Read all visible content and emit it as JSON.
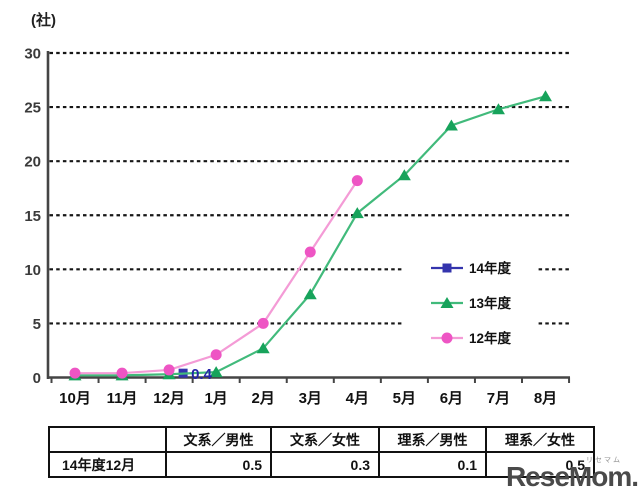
{
  "chart_data": {
    "type": "line",
    "unit_label": "(社)",
    "categories": [
      "10月",
      "11月",
      "12月",
      "1月",
      "2月",
      "3月",
      "4月",
      "5月",
      "6月",
      "7月",
      "8月"
    ],
    "series": [
      {
        "name": "14年度",
        "marker": "square",
        "line_color": "#3434ad",
        "marker_color": "#3434ad",
        "values": [
          null,
          null,
          0.4,
          null,
          null,
          null,
          null,
          null,
          null,
          null,
          null
        ]
      },
      {
        "name": "13年度",
        "marker": "triangle",
        "line_color": "#41ba7b",
        "marker_color": "#17a35b",
        "values": [
          0.2,
          0.2,
          0.3,
          0.5,
          2.7,
          7.7,
          15.2,
          18.7,
          23.3,
          24.8,
          26
        ]
      },
      {
        "name": "12年度",
        "marker": "circle",
        "line_color": "#f49bd6",
        "marker_color": "#ee55c4",
        "values": [
          0.4,
          0.4,
          0.7,
          2.1,
          5,
          11.6,
          18.2,
          null,
          null,
          null,
          null
        ]
      }
    ],
    "point_labels": [
      {
        "series": "14年度",
        "category": "12月",
        "text": "0.4",
        "color": "#2424a8"
      }
    ],
    "ylim": [
      0,
      30
    ],
    "yticks": [
      0,
      5,
      10,
      15,
      20,
      25,
      30
    ],
    "grid": "horizontal-dashed",
    "legend_position": "middle-right"
  },
  "table": {
    "headers": [
      "",
      "文系／男性",
      "文系／女性",
      "理系／男性",
      "理系／女性"
    ],
    "rows": [
      {
        "label": "14年度12月",
        "values": [
          "0.5",
          "0.3",
          "0.1",
          "0.5"
        ]
      }
    ]
  },
  "watermark": {
    "text": "ReseMom.",
    "ruby": "リセマム"
  }
}
